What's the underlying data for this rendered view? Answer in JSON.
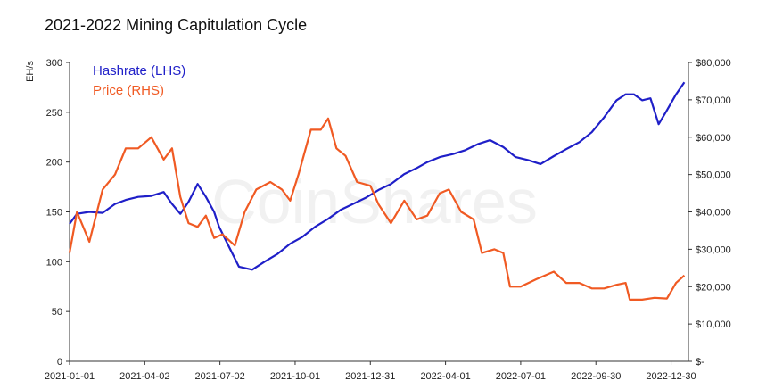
{
  "chart_data": {
    "type": "line",
    "title": "2021-2022 Mining Capitulation Cycle",
    "watermark": "CoinShares",
    "y_left": {
      "label": "EH/s",
      "ylim": [
        0,
        300
      ],
      "ticks": [
        "0",
        "50",
        "100",
        "150",
        "200",
        "250",
        "300"
      ]
    },
    "y_right": {
      "label": "",
      "ylim": [
        0,
        80000
      ],
      "ticks": [
        "$-",
        "$10,000",
        "$20,000",
        "$30,000",
        "$40,000",
        "$50,000",
        "$60,000",
        "$70,000",
        "$80,000"
      ]
    },
    "x_ticks": [
      "2021-01-01",
      "2021-04-02",
      "2021-07-02",
      "2021-10-01",
      "2021-12-31",
      "2022-04-01",
      "2022-07-01",
      "2022-09-30",
      "2022-12-30"
    ],
    "grid": false,
    "legend_placement": "top-left",
    "series": [
      {
        "name": "Hashrate (LHS)",
        "axis": "left",
        "color": "#1f1fc8",
        "x": [
          "2021-01-01",
          "2021-01-10",
          "2021-01-25",
          "2021-02-10",
          "2021-02-25",
          "2021-03-10",
          "2021-03-25",
          "2021-04-10",
          "2021-04-25",
          "2021-05-05",
          "2021-05-15",
          "2021-05-25",
          "2021-06-05",
          "2021-06-15",
          "2021-06-25",
          "2021-07-01",
          "2021-07-10",
          "2021-07-25",
          "2021-08-10",
          "2021-08-25",
          "2021-09-10",
          "2021-09-25",
          "2021-10-10",
          "2021-10-25",
          "2021-11-10",
          "2021-11-25",
          "2021-12-10",
          "2021-12-25",
          "2022-01-10",
          "2022-01-25",
          "2022-02-10",
          "2022-02-25",
          "2022-03-10",
          "2022-03-25",
          "2022-04-10",
          "2022-04-25",
          "2022-05-10",
          "2022-05-25",
          "2022-06-10",
          "2022-06-25",
          "2022-07-10",
          "2022-07-25",
          "2022-08-10",
          "2022-08-25",
          "2022-09-10",
          "2022-09-25",
          "2022-10-10",
          "2022-10-25",
          "2022-11-05",
          "2022-11-15",
          "2022-11-25",
          "2022-12-05",
          "2022-12-15",
          "2022-12-25",
          "2023-01-05",
          "2023-01-15"
        ],
        "values": [
          138,
          148,
          150,
          149,
          158,
          162,
          165,
          166,
          170,
          158,
          148,
          160,
          178,
          165,
          150,
          135,
          120,
          95,
          92,
          100,
          108,
          118,
          125,
          135,
          143,
          152,
          158,
          164,
          172,
          178,
          188,
          194,
          200,
          205,
          208,
          212,
          218,
          222,
          215,
          205,
          202,
          198,
          206,
          213,
          220,
          230,
          245,
          262,
          268,
          268,
          262,
          264,
          238,
          252,
          268,
          280
        ]
      },
      {
        "name": "Price (RHS)",
        "axis": "right",
        "color": "#f05a23",
        "x": [
          "2021-01-01",
          "2021-01-10",
          "2021-01-25",
          "2021-02-10",
          "2021-02-25",
          "2021-03-10",
          "2021-03-25",
          "2021-04-10",
          "2021-04-25",
          "2021-05-05",
          "2021-05-15",
          "2021-05-25",
          "2021-06-05",
          "2021-06-15",
          "2021-06-25",
          "2021-07-05",
          "2021-07-20",
          "2021-08-01",
          "2021-08-15",
          "2021-09-01",
          "2021-09-15",
          "2021-09-25",
          "2021-10-05",
          "2021-10-20",
          "2021-11-01",
          "2021-11-10",
          "2021-11-20",
          "2021-12-01",
          "2021-12-15",
          "2021-12-31",
          "2022-01-10",
          "2022-01-25",
          "2022-02-10",
          "2022-02-25",
          "2022-03-10",
          "2022-03-25",
          "2022-04-05",
          "2022-04-20",
          "2022-05-05",
          "2022-05-15",
          "2022-05-30",
          "2022-06-10",
          "2022-06-18",
          "2022-07-01",
          "2022-07-20",
          "2022-08-10",
          "2022-08-25",
          "2022-09-10",
          "2022-09-25",
          "2022-10-10",
          "2022-10-25",
          "2022-11-05",
          "2022-11-10",
          "2022-11-25",
          "2022-12-10",
          "2022-12-25",
          "2023-01-05",
          "2023-01-15"
        ],
        "values": [
          29000,
          40000,
          32000,
          46000,
          50000,
          57000,
          57000,
          60000,
          54000,
          57000,
          44000,
          37000,
          36000,
          39000,
          33000,
          34000,
          31000,
          40000,
          46000,
          48000,
          46000,
          43000,
          50000,
          62000,
          62000,
          65000,
          57000,
          55000,
          48000,
          47000,
          42000,
          37000,
          43000,
          38000,
          39000,
          45000,
          46000,
          40000,
          38000,
          29000,
          30000,
          29000,
          20000,
          20000,
          22000,
          24000,
          21000,
          21000,
          19500,
          19500,
          20500,
          21000,
          16500,
          16500,
          17000,
          16800,
          21000,
          23000
        ]
      }
    ]
  }
}
